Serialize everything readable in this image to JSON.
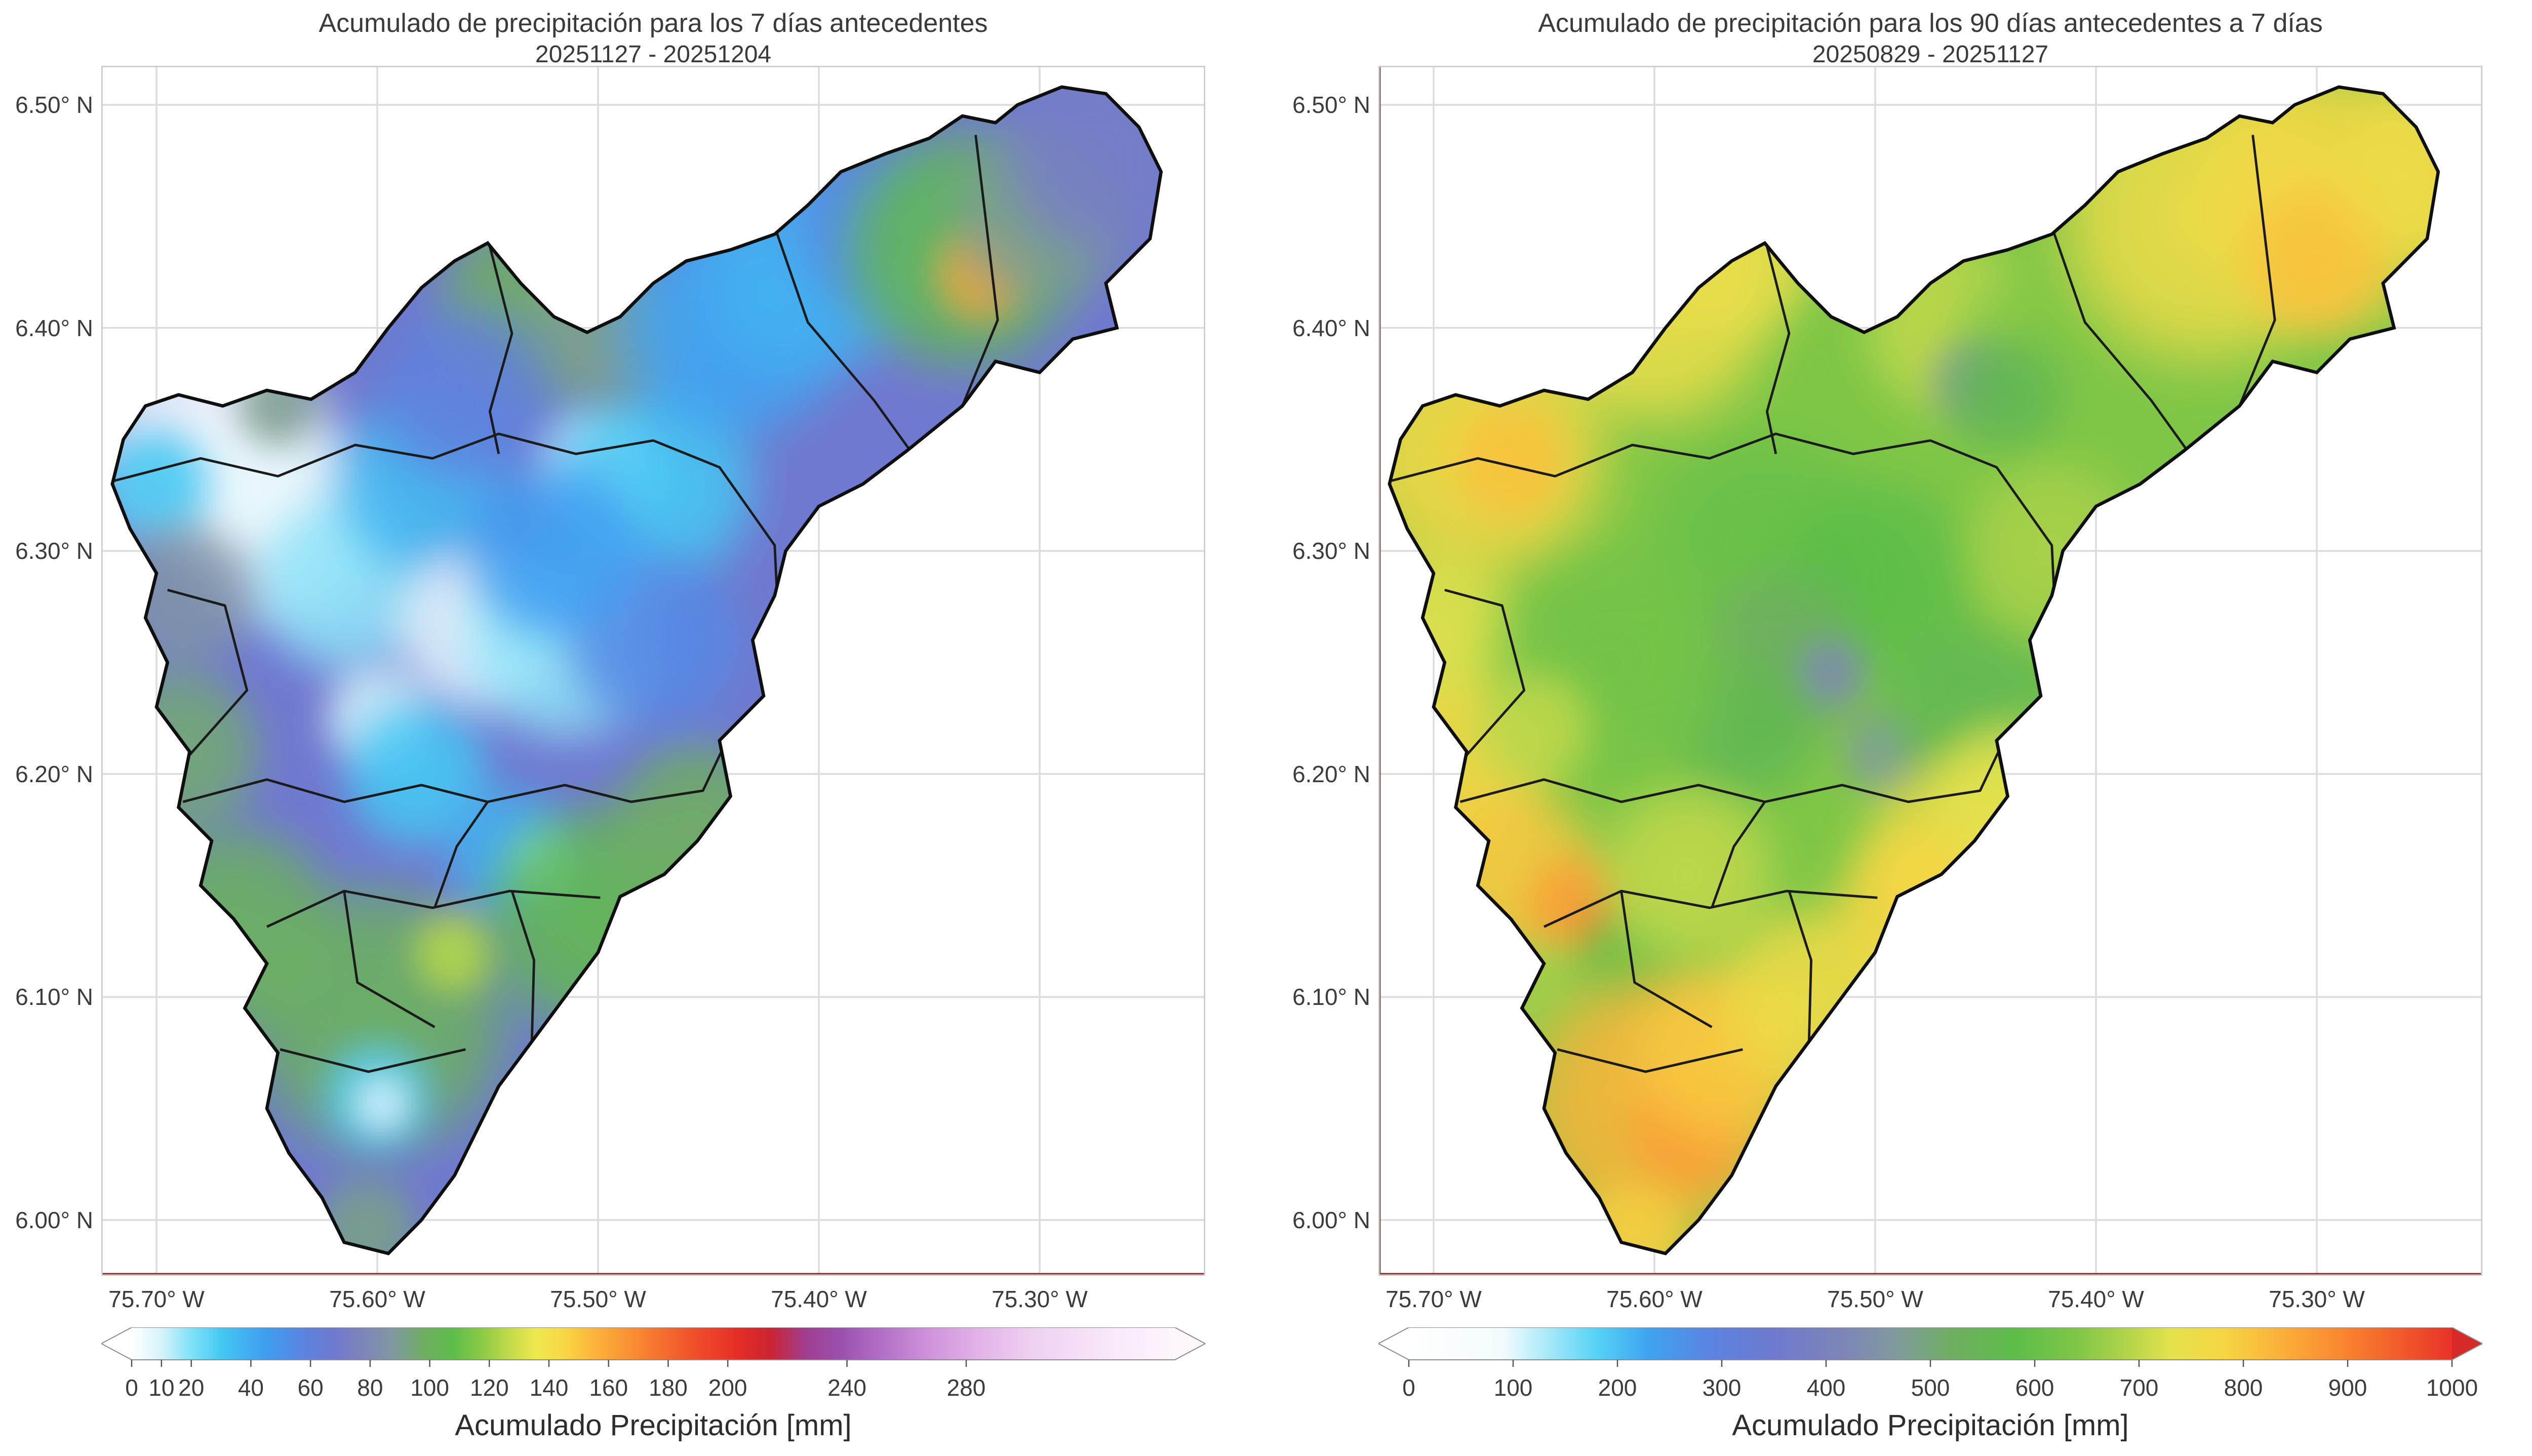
{
  "chart_data": {
    "type": "heatmap",
    "description": "Two interpolated precipitation accumulation maps over a watershed with municipality boundaries, each with its own horizontal colorbar",
    "axes": {
      "lon_range": [
        -75.725,
        -75.225
      ],
      "lat_range": [
        5.975,
        6.5175
      ],
      "lon_ticks": [
        {
          "label": "75.70° W",
          "value": -75.7
        },
        {
          "label": "75.60° W",
          "value": -75.6
        },
        {
          "label": "75.50° W",
          "value": -75.5
        },
        {
          "label": "75.40° W",
          "value": -75.4
        },
        {
          "label": "75.30° W",
          "value": -75.3
        }
      ],
      "lat_ticks": [
        {
          "label": "6.50° N",
          "value": 6.5
        },
        {
          "label": "6.40° N",
          "value": 6.4
        },
        {
          "label": "6.30° N",
          "value": 6.3
        },
        {
          "label": "6.20° N",
          "value": 6.2
        },
        {
          "label": "6.10° N",
          "value": 6.1
        },
        {
          "label": "6.00° N",
          "value": 6.0
        }
      ]
    },
    "maps": [
      {
        "title": "Acumulado de precipitación para los 7 días antecedentes",
        "subtitle": "20251127 - 20251204",
        "units": "mm",
        "base_value": 68,
        "colormap": [
          [
            0,
            "#ffffff"
          ],
          [
            10,
            "#d6f3fb"
          ],
          [
            20,
            "#7fe2f8"
          ],
          [
            30,
            "#45c8f3"
          ],
          [
            45,
            "#3f9df0"
          ],
          [
            58,
            "#5b83e0"
          ],
          [
            68,
            "#6f79cf"
          ],
          [
            78,
            "#7e85b8"
          ],
          [
            88,
            "#7f999f"
          ],
          [
            98,
            "#6fae62"
          ],
          [
            108,
            "#5dbd4a"
          ],
          [
            118,
            "#8ecb47"
          ],
          [
            128,
            "#c8dd4b"
          ],
          [
            136,
            "#f0e84f"
          ],
          [
            146,
            "#f9d442"
          ],
          [
            156,
            "#fbb13a"
          ],
          [
            168,
            "#fa8d33"
          ],
          [
            180,
            "#f4682e"
          ],
          [
            192,
            "#ef4729"
          ],
          [
            204,
            "#e52d27"
          ],
          [
            214,
            "#cb2430"
          ],
          [
            226,
            "#a23d8f"
          ],
          [
            238,
            "#9a51ae"
          ],
          [
            252,
            "#b370c8"
          ],
          [
            268,
            "#cf93da"
          ],
          [
            284,
            "#e2b2e8"
          ],
          [
            302,
            "#efd0f1"
          ],
          [
            330,
            "#f9e9fa"
          ],
          [
            350,
            "#fdf6fd"
          ]
        ],
        "colorbar": {
          "label": "Acumulado Precipitación [mm]",
          "range": [
            0,
            350
          ],
          "extend": "both",
          "over_color": "#fdf6fd",
          "ticks": [
            {
              "label": "0",
              "value": 0
            },
            {
              "label": "10",
              "value": 10
            },
            {
              "label": "20",
              "value": 20
            },
            {
              "label": "40",
              "value": 40
            },
            {
              "label": "60",
              "value": 60
            },
            {
              "label": "80",
              "value": 80
            },
            {
              "label": "100",
              "value": 100
            },
            {
              "label": "120",
              "value": 120
            },
            {
              "label": "140",
              "value": 140
            },
            {
              "label": "160",
              "value": 160
            },
            {
              "label": "180",
              "value": 180
            },
            {
              "label": "200",
              "value": 200
            },
            {
              "label": "240",
              "value": 240
            },
            {
              "label": "280",
              "value": 280
            }
          ]
        },
        "points": [
          {
            "lon": -75.675,
            "lat": 6.35,
            "value": 2,
            "r": 0.04
          },
          {
            "lon": -75.645,
            "lat": 6.315,
            "value": 5,
            "r": 0.035
          },
          {
            "lon": -75.615,
            "lat": 6.285,
            "value": 18,
            "r": 0.03
          },
          {
            "lon": -75.7,
            "lat": 6.33,
            "value": 30,
            "r": 0.02
          },
          {
            "lon": -75.58,
            "lat": 6.33,
            "value": 35,
            "r": 0.03
          },
          {
            "lon": -75.5,
            "lat": 6.335,
            "value": 4,
            "r": 0.022
          },
          {
            "lon": -75.475,
            "lat": 6.33,
            "value": 30,
            "r": 0.035
          },
          {
            "lon": -75.555,
            "lat": 6.265,
            "value": 6,
            "r": 0.028
          },
          {
            "lon": -75.515,
            "lat": 6.26,
            "value": 18,
            "r": 0.034
          },
          {
            "lon": -75.6,
            "lat": 6.225,
            "value": 10,
            "r": 0.018
          },
          {
            "lon": -75.582,
            "lat": 6.2,
            "value": 30,
            "r": 0.025
          },
          {
            "lon": -75.54,
            "lat": 6.165,
            "value": 38,
            "r": 0.022
          },
          {
            "lon": -75.525,
            "lat": 6.16,
            "value": 20,
            "r": 0.012
          },
          {
            "lon": -75.688,
            "lat": 6.28,
            "value": 85,
            "r": 0.025
          },
          {
            "lon": -75.69,
            "lat": 6.21,
            "value": 95,
            "r": 0.028
          },
          {
            "lon": -75.665,
            "lat": 6.13,
            "value": 100,
            "r": 0.035
          },
          {
            "lon": -75.6,
            "lat": 6.09,
            "value": 100,
            "r": 0.045
          },
          {
            "lon": -75.565,
            "lat": 6.12,
            "value": 125,
            "r": 0.014
          },
          {
            "lon": -75.5,
            "lat": 6.135,
            "value": 105,
            "r": 0.038
          },
          {
            "lon": -75.455,
            "lat": 6.175,
            "value": 98,
            "r": 0.03
          },
          {
            "lon": -75.53,
            "lat": 6.41,
            "value": 98,
            "r": 0.032
          },
          {
            "lon": -75.497,
            "lat": 6.398,
            "value": 90,
            "r": 0.026
          },
          {
            "lon": -75.44,
            "lat": 6.4,
            "value": 42,
            "r": 0.038
          },
          {
            "lon": -75.405,
            "lat": 6.425,
            "value": 38,
            "r": 0.036
          },
          {
            "lon": -75.37,
            "lat": 6.445,
            "value": 55,
            "r": 0.03
          },
          {
            "lon": -75.335,
            "lat": 6.435,
            "value": 105,
            "r": 0.04
          },
          {
            "lon": -75.325,
            "lat": 6.425,
            "value": 160,
            "r": 0.016
          },
          {
            "lon": -75.3,
            "lat": 6.45,
            "value": 90,
            "r": 0.03
          },
          {
            "lon": -75.27,
            "lat": 6.48,
            "value": 72,
            "r": 0.035
          },
          {
            "lon": -75.6,
            "lat": 6.055,
            "value": 28,
            "r": 0.018
          },
          {
            "lon": -75.598,
            "lat": 6.052,
            "value": 8,
            "r": 0.009
          },
          {
            "lon": -75.605,
            "lat": 5.995,
            "value": 92,
            "r": 0.018
          },
          {
            "lon": -75.475,
            "lat": 6.26,
            "value": 55,
            "r": 0.03
          },
          {
            "lon": -75.52,
            "lat": 6.3,
            "value": 45,
            "r": 0.03
          },
          {
            "lon": -75.56,
            "lat": 6.37,
            "value": 60,
            "r": 0.03
          },
          {
            "lon": -75.645,
            "lat": 6.365,
            "value": 90,
            "r": 0.015
          }
        ]
      },
      {
        "title": "Acumulado de precipitación para los 90 días antecedentes a 7 días",
        "subtitle": "20250829 - 20251127",
        "units": "mm",
        "base_value": 640,
        "colormap": [
          [
            0,
            "#ffffff"
          ],
          [
            90,
            "#f2fbfd"
          ],
          [
            130,
            "#aeeaf9"
          ],
          [
            180,
            "#55d2f5"
          ],
          [
            230,
            "#3fa3f1"
          ],
          [
            290,
            "#5b83e0"
          ],
          [
            350,
            "#6f79cf"
          ],
          [
            420,
            "#7e86b6"
          ],
          [
            470,
            "#7f9c9b"
          ],
          [
            520,
            "#6fae62"
          ],
          [
            580,
            "#5cbd49"
          ],
          [
            640,
            "#7fc647"
          ],
          [
            690,
            "#b4d44a"
          ],
          [
            730,
            "#e3e24d"
          ],
          [
            780,
            "#f7d643"
          ],
          [
            840,
            "#fbad39"
          ],
          [
            900,
            "#f9822f"
          ],
          [
            950,
            "#f25b2b"
          ],
          [
            1000,
            "#e93228"
          ]
        ],
        "colorbar": {
          "label": "Acumulado Precipitación [mm]",
          "range": [
            0,
            1000
          ],
          "extend": "both",
          "over_color": "#d62a28",
          "ticks": [
            {
              "label": "0",
              "value": 0
            },
            {
              "label": "100",
              "value": 100
            },
            {
              "label": "200",
              "value": 200
            },
            {
              "label": "300",
              "value": 300
            },
            {
              "label": "400",
              "value": 400
            },
            {
              "label": "500",
              "value": 500
            },
            {
              "label": "600",
              "value": 600
            },
            {
              "label": "700",
              "value": 700
            },
            {
              "label": "800",
              "value": 800
            },
            {
              "label": "900",
              "value": 900
            },
            {
              "label": "1000",
              "value": 1000
            }
          ]
        },
        "points": [
          {
            "lon": -75.68,
            "lat": 6.345,
            "value": 770,
            "r": 0.045
          },
          {
            "lon": -75.665,
            "lat": 6.34,
            "value": 810,
            "r": 0.02
          },
          {
            "lon": -75.7,
            "lat": 6.26,
            "value": 730,
            "r": 0.03
          },
          {
            "lon": -75.6,
            "lat": 6.41,
            "value": 750,
            "r": 0.04
          },
          {
            "lon": -75.565,
            "lat": 6.435,
            "value": 745,
            "r": 0.03
          },
          {
            "lon": -75.465,
            "lat": 6.4,
            "value": 700,
            "r": 0.03
          },
          {
            "lon": -75.42,
            "lat": 6.385,
            "value": 640,
            "r": 0.035
          },
          {
            "lon": -75.455,
            "lat": 6.375,
            "value": 460,
            "r": 0.015
          },
          {
            "lon": -75.44,
            "lat": 6.37,
            "value": 560,
            "r": 0.02
          },
          {
            "lon": -75.35,
            "lat": 6.45,
            "value": 755,
            "r": 0.05
          },
          {
            "lon": -75.295,
            "lat": 6.46,
            "value": 770,
            "r": 0.045
          },
          {
            "lon": -75.3,
            "lat": 6.43,
            "value": 810,
            "r": 0.025
          },
          {
            "lon": -75.25,
            "lat": 6.47,
            "value": 760,
            "r": 0.03
          },
          {
            "lon": -75.55,
            "lat": 6.3,
            "value": 600,
            "r": 0.04
          },
          {
            "lon": -75.5,
            "lat": 6.285,
            "value": 580,
            "r": 0.035
          },
          {
            "lon": -75.545,
            "lat": 6.25,
            "value": 520,
            "r": 0.03
          },
          {
            "lon": -75.52,
            "lat": 6.245,
            "value": 430,
            "r": 0.012
          },
          {
            "lon": -75.495,
            "lat": 6.21,
            "value": 470,
            "r": 0.015
          },
          {
            "lon": -75.56,
            "lat": 6.22,
            "value": 560,
            "r": 0.025
          },
          {
            "lon": -75.455,
            "lat": 6.23,
            "value": 560,
            "r": 0.03
          },
          {
            "lon": -75.42,
            "lat": 6.3,
            "value": 680,
            "r": 0.03
          },
          {
            "lon": -75.46,
            "lat": 6.16,
            "value": 760,
            "r": 0.035
          },
          {
            "lon": -75.48,
            "lat": 6.135,
            "value": 780,
            "r": 0.03
          },
          {
            "lon": -75.44,
            "lat": 6.19,
            "value": 730,
            "r": 0.025
          },
          {
            "lon": -75.69,
            "lat": 6.2,
            "value": 770,
            "r": 0.03
          },
          {
            "lon": -75.665,
            "lat": 6.155,
            "value": 800,
            "r": 0.03
          },
          {
            "lon": -75.635,
            "lat": 6.14,
            "value": 860,
            "r": 0.018
          },
          {
            "lon": -75.625,
            "lat": 6.133,
            "value": 920,
            "r": 0.007
          },
          {
            "lon": -75.655,
            "lat": 6.1,
            "value": 680,
            "r": 0.02
          },
          {
            "lon": -75.61,
            "lat": 6.115,
            "value": 600,
            "r": 0.02
          },
          {
            "lon": -75.635,
            "lat": 6.075,
            "value": 650,
            "r": 0.025
          },
          {
            "lon": -75.6,
            "lat": 6.05,
            "value": 830,
            "r": 0.045
          },
          {
            "lon": -75.585,
            "lat": 6.04,
            "value": 860,
            "r": 0.02
          },
          {
            "lon": -75.57,
            "lat": 6.075,
            "value": 800,
            "r": 0.03
          },
          {
            "lon": -75.61,
            "lat": 5.99,
            "value": 790,
            "r": 0.02
          },
          {
            "lon": -75.53,
            "lat": 6.1,
            "value": 760,
            "r": 0.03
          },
          {
            "lon": -75.585,
            "lat": 6.155,
            "value": 700,
            "r": 0.03
          },
          {
            "lon": -75.62,
            "lat": 6.25,
            "value": 620,
            "r": 0.04
          },
          {
            "lon": -75.655,
            "lat": 6.22,
            "value": 700,
            "r": 0.02
          }
        ]
      }
    ]
  }
}
